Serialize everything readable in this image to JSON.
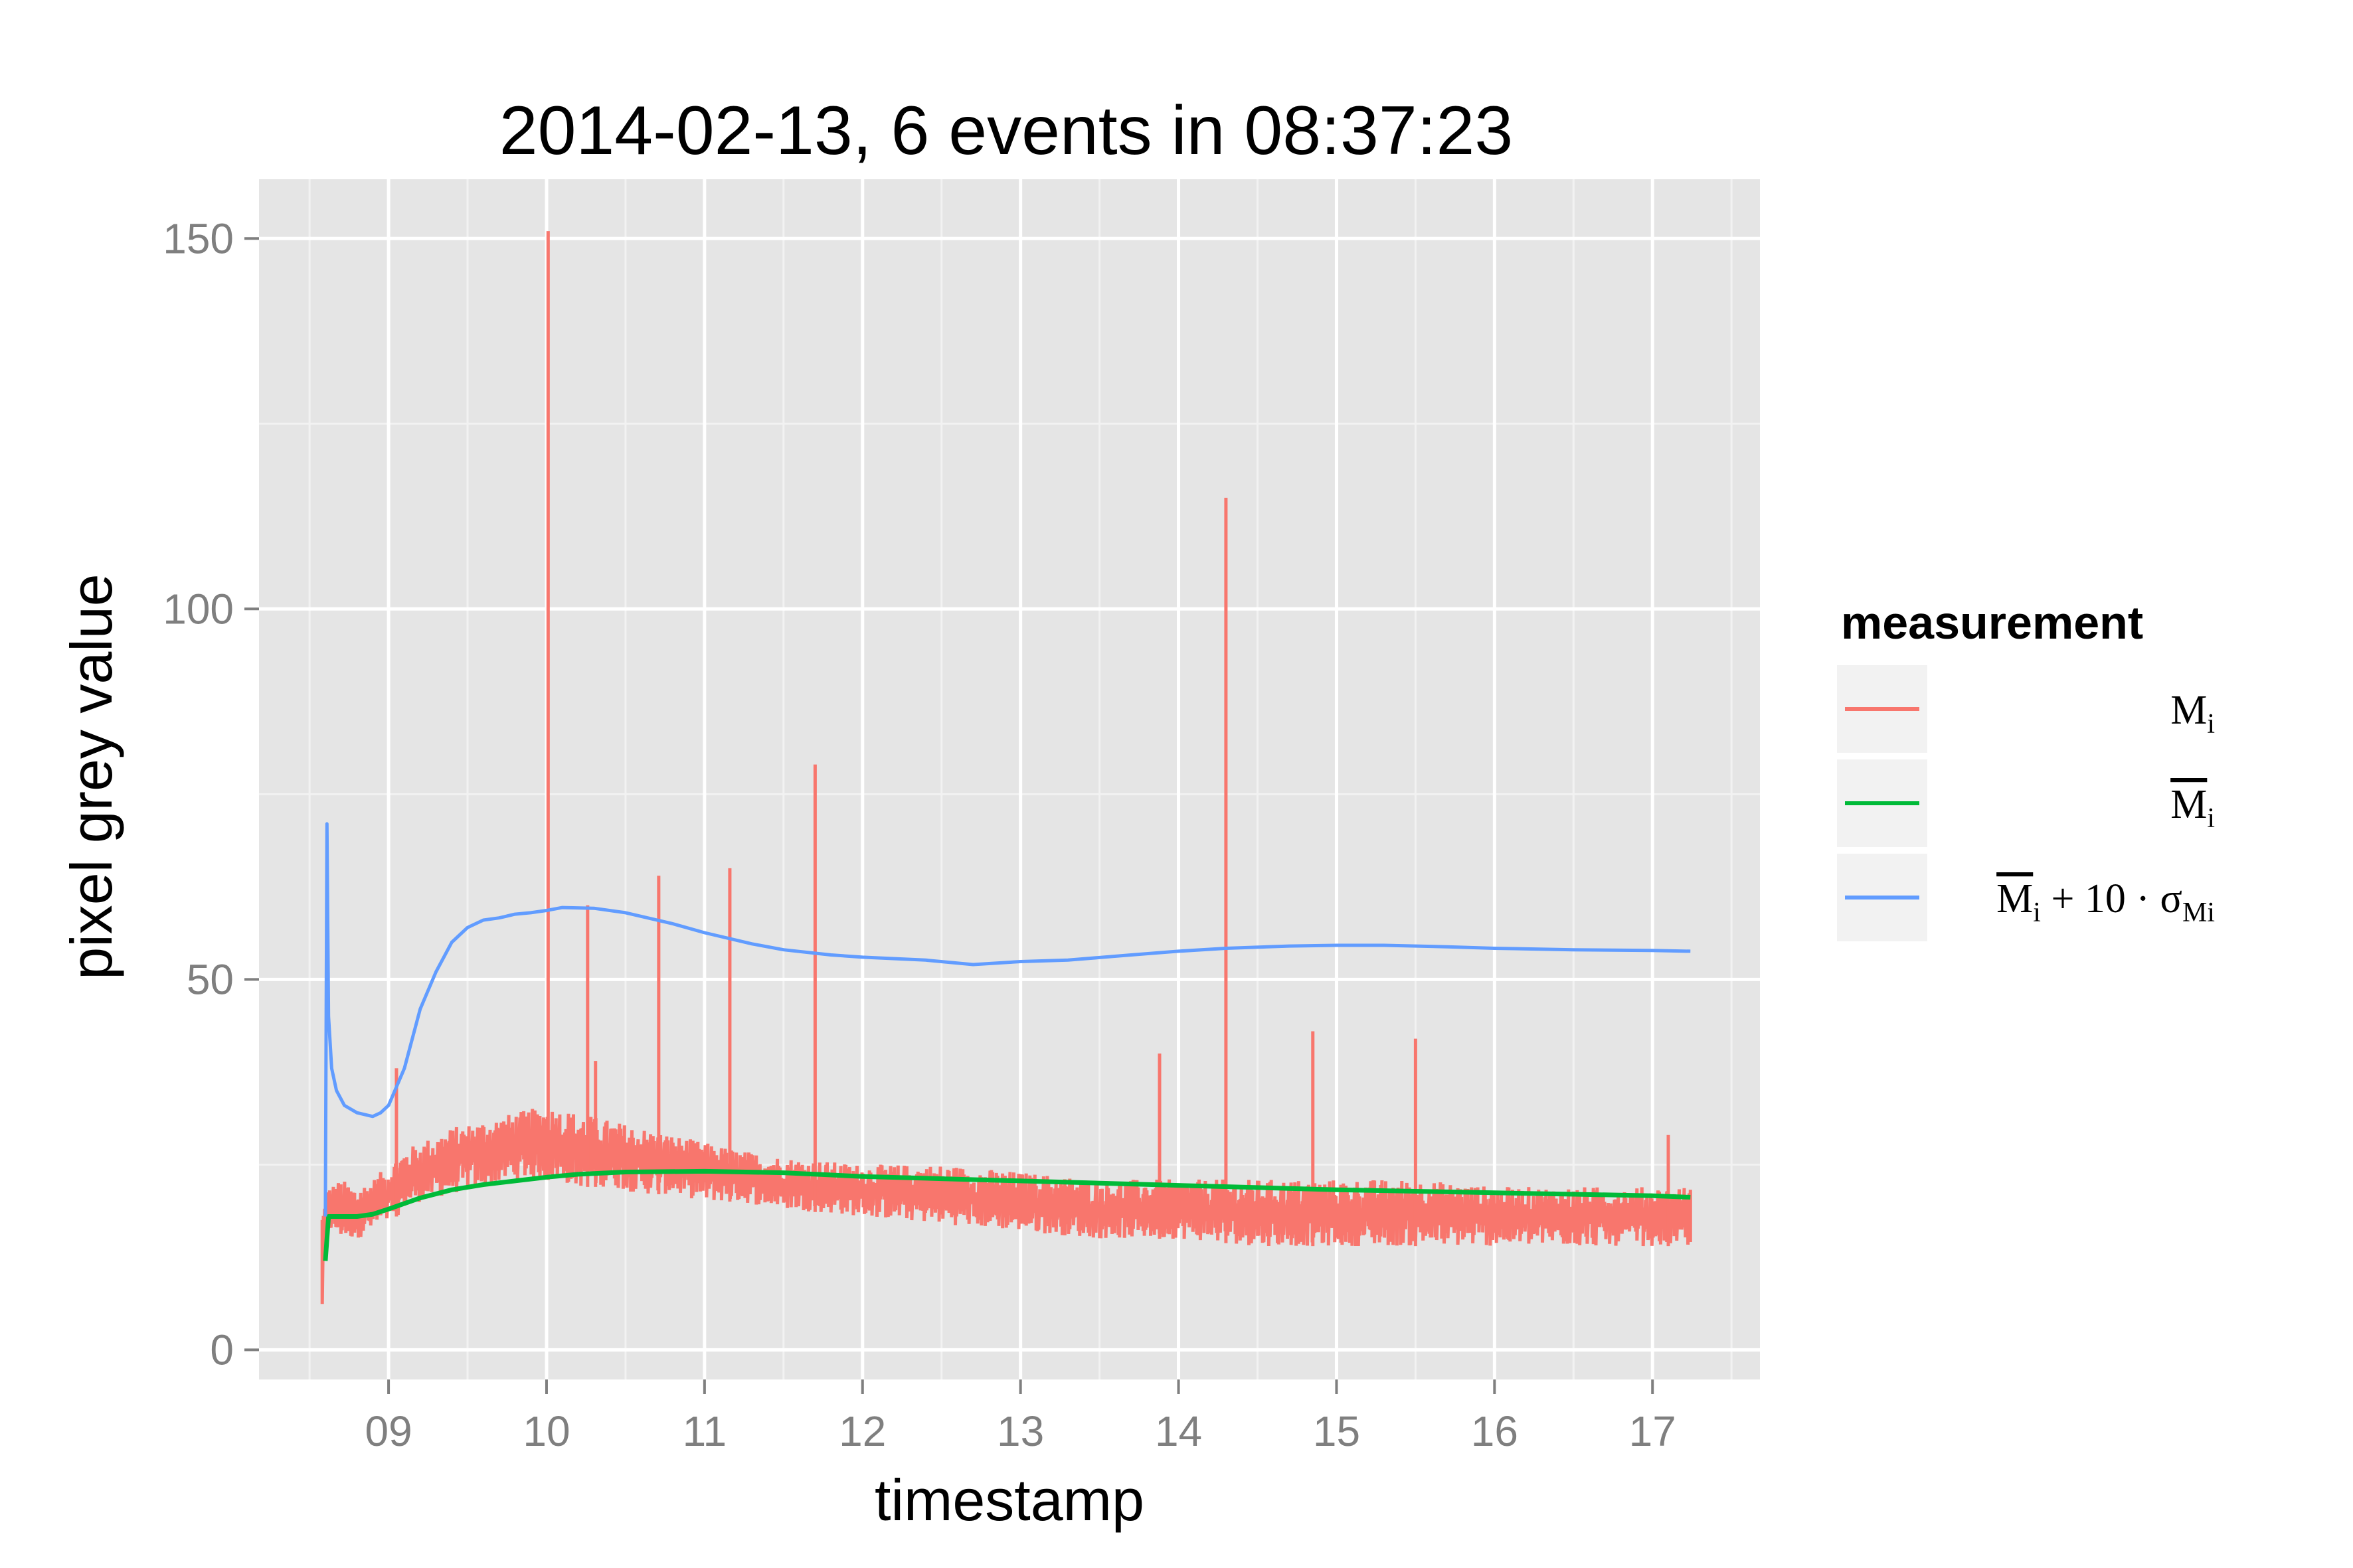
{
  "chart_data": {
    "type": "line",
    "title": "2014-02-13, 6 events in 08:37:23",
    "xlabel": "timestamp",
    "ylabel": "pixel grey value",
    "xlim": [
      8.18,
      17.68
    ],
    "ylim": [
      -4,
      158
    ],
    "x_ticks": [
      9,
      10,
      11,
      12,
      13,
      14,
      15,
      16,
      17
    ],
    "x_tick_labels": [
      "09",
      "10",
      "11",
      "12",
      "13",
      "14",
      "15",
      "16",
      "17"
    ],
    "y_ticks": [
      0,
      50,
      100,
      150
    ],
    "y_tick_labels": [
      "0",
      "50",
      "100",
      "150"
    ],
    "grid": true,
    "panel_background": "#e5e5e5",
    "grid_color": "#ffffff",
    "legend": {
      "title": "measurement",
      "position": "right",
      "entries": [
        {
          "base": "M",
          "sub": "i",
          "overline": false,
          "plus_term": "",
          "sigma_sub": ""
        },
        {
          "base": "M",
          "sub": "i",
          "overline": true,
          "plus_term": "",
          "sigma_sub": ""
        },
        {
          "base": "M",
          "sub": "i",
          "overline": true,
          "plus_term": "+ 10 · σ",
          "sigma_sub": "Mi"
        }
      ]
    },
    "series": [
      {
        "color": "#f8766d",
        "kind": "noisy-band",
        "x": [
          8.58,
          8.62,
          8.7,
          8.8,
          8.9,
          9.0,
          9.1,
          9.2,
          9.4,
          9.6,
          9.8,
          10.0,
          10.2,
          10.4,
          10.6,
          10.8,
          11.0,
          11.2,
          11.5,
          12.0,
          12.5,
          13.0,
          13.5,
          14.0,
          14.5,
          15.0,
          15.5,
          16.0,
          16.5,
          17.0,
          17.24
        ],
        "low": [
          4,
          16,
          15,
          15,
          16,
          17,
          19,
          20,
          21,
          22,
          23,
          23,
          22,
          22,
          21,
          21,
          20,
          20,
          19,
          18,
          17,
          16,
          15,
          15,
          14,
          14,
          14,
          14,
          14,
          14,
          14
        ],
        "high": [
          20,
          22,
          23,
          22,
          23,
          25,
          27,
          28,
          30,
          31,
          32,
          33,
          32,
          31,
          30,
          29,
          28,
          27,
          26,
          25,
          25,
          24,
          23,
          23,
          23,
          23,
          23,
          22,
          22,
          22,
          22
        ],
        "spikes": [
          {
            "x": 9.05,
            "y": 38
          },
          {
            "x": 10.01,
            "y": 151
          },
          {
            "x": 10.26,
            "y": 60
          },
          {
            "x": 10.31,
            "y": 39
          },
          {
            "x": 10.71,
            "y": 64
          },
          {
            "x": 11.16,
            "y": 65
          },
          {
            "x": 11.7,
            "y": 79
          },
          {
            "x": 13.88,
            "y": 40
          },
          {
            "x": 14.3,
            "y": 115
          },
          {
            "x": 14.85,
            "y": 43
          },
          {
            "x": 15.5,
            "y": 42
          },
          {
            "x": 17.1,
            "y": 29
          }
        ]
      },
      {
        "color": "#00ba38",
        "x": [
          8.6,
          8.62,
          8.65,
          8.8,
          8.9,
          9.0,
          9.2,
          9.4,
          9.6,
          9.8,
          10.0,
          10.2,
          10.5,
          11.0,
          11.5,
          12.0,
          12.5,
          13.0,
          13.5,
          14.0,
          14.5,
          15.0,
          15.5,
          16.0,
          16.5,
          17.0,
          17.24
        ],
        "values": [
          12,
          18,
          18,
          18,
          18.3,
          19,
          20.5,
          21.6,
          22.3,
          22.8,
          23.3,
          23.7,
          24,
          24.1,
          23.9,
          23.4,
          23.1,
          22.8,
          22.5,
          22.2,
          21.9,
          21.6,
          21.4,
          21.2,
          21,
          20.8,
          20.6
        ]
      },
      {
        "color": "#619cff",
        "x": [
          8.6,
          8.61,
          8.62,
          8.64,
          8.67,
          8.72,
          8.8,
          8.9,
          8.95,
          9.0,
          9.1,
          9.2,
          9.3,
          9.4,
          9.5,
          9.6,
          9.7,
          9.8,
          9.9,
          10.0,
          10.1,
          10.3,
          10.5,
          10.8,
          11.0,
          11.3,
          11.5,
          11.8,
          12.0,
          12.4,
          12.7,
          13.0,
          13.3,
          13.7,
          14.0,
          14.3,
          14.7,
          15.0,
          15.3,
          15.7,
          16.0,
          16.5,
          17.0,
          17.24
        ],
        "values": [
          18,
          71,
          45,
          38,
          35,
          33,
          32,
          31.5,
          32,
          33,
          38,
          46,
          51,
          55,
          57,
          58,
          58.3,
          58.8,
          59,
          59.3,
          59.7,
          59.6,
          59,
          57.5,
          56.3,
          54.8,
          54,
          53.3,
          53,
          52.6,
          52,
          52.4,
          52.6,
          53.3,
          53.8,
          54.2,
          54.5,
          54.6,
          54.6,
          54.4,
          54.2,
          54,
          53.9,
          53.8
        ]
      }
    ]
  }
}
